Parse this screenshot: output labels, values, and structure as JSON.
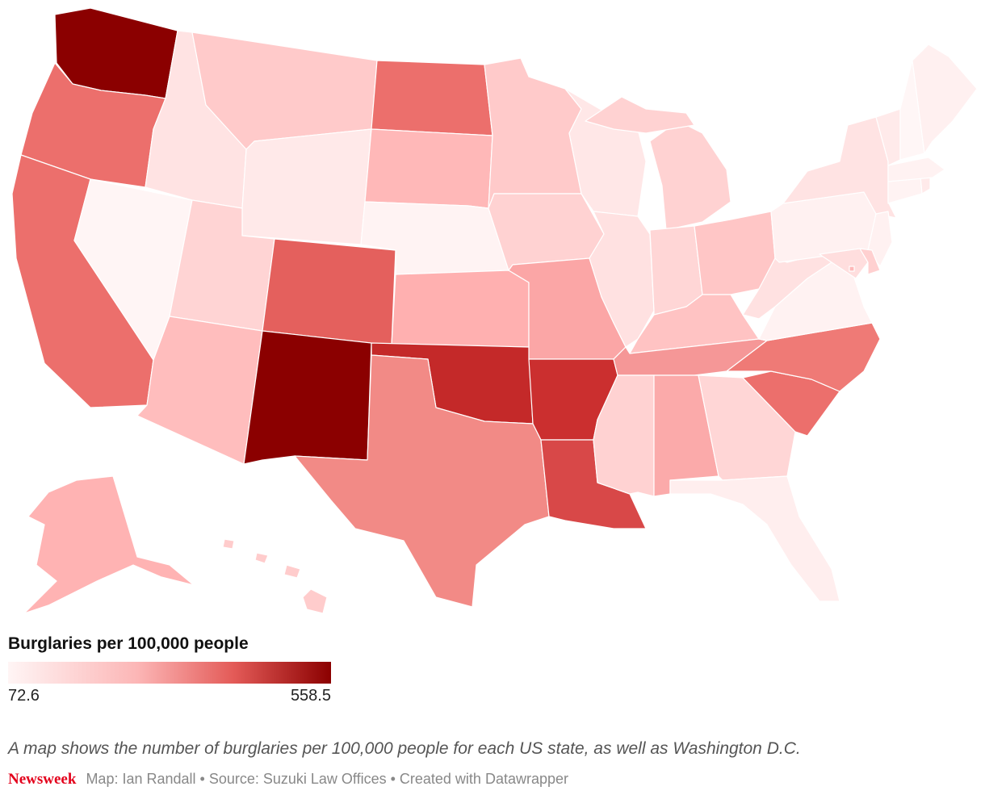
{
  "legend": {
    "title": "Burglaries per 100,000 people",
    "min_label": "72.6",
    "max_label": "558.5",
    "min_value": 72.6,
    "max_value": 558.5,
    "color_low": "#fff5f5",
    "color_high": "#8b0000"
  },
  "description": "A map shows the number of burglaries per 100,000 people for each US state, as well as Washington D.C.",
  "footer": {
    "brand": "Newsweek",
    "credits": "Map: Ian Randall • Source: Suzuki Law Offices • Created with Datawrapper"
  },
  "states": [
    {
      "code": "WA",
      "name": "Washington",
      "color": "#8b0000"
    },
    {
      "code": "OR",
      "name": "Oregon",
      "color": "#ec6f6c"
    },
    {
      "code": "CA",
      "name": "California",
      "color": "#ec6f6c"
    },
    {
      "code": "NV",
      "name": "Nevada",
      "color": "#fff5f5"
    },
    {
      "code": "ID",
      "name": "Idaho",
      "color": "#ffe3e3"
    },
    {
      "code": "MT",
      "name": "Montana",
      "color": "#ffcaca"
    },
    {
      "code": "WY",
      "name": "Wyoming",
      "color": "#ffe9e9"
    },
    {
      "code": "UT",
      "name": "Utah",
      "color": "#ffd4d4"
    },
    {
      "code": "AZ",
      "name": "Arizona",
      "color": "#ffbdbd"
    },
    {
      "code": "CO",
      "name": "Colorado",
      "color": "#e4605d"
    },
    {
      "code": "NM",
      "name": "New Mexico",
      "color": "#8b0000"
    },
    {
      "code": "ND",
      "name": "North Dakota",
      "color": "#ec6f6c"
    },
    {
      "code": "SD",
      "name": "South Dakota",
      "color": "#ffb8b8"
    },
    {
      "code": "NE",
      "name": "Nebraska",
      "color": "#fff3f3"
    },
    {
      "code": "KS",
      "name": "Kansas",
      "color": "#ffb0b0"
    },
    {
      "code": "OK",
      "name": "Oklahoma",
      "color": "#c42929"
    },
    {
      "code": "TX",
      "name": "Texas",
      "color": "#f28a86"
    },
    {
      "code": "MN",
      "name": "Minnesota",
      "color": "#ffcaca"
    },
    {
      "code": "IA",
      "name": "Iowa",
      "color": "#ffd2d2"
    },
    {
      "code": "MO",
      "name": "Missouri",
      "color": "#fba6a6"
    },
    {
      "code": "AR",
      "name": "Arkansas",
      "color": "#cb2f2f"
    },
    {
      "code": "LA",
      "name": "Louisiana",
      "color": "#d84848"
    },
    {
      "code": "WI",
      "name": "Wisconsin",
      "color": "#ffe7e7"
    },
    {
      "code": "IL",
      "name": "Illinois",
      "color": "#ffe1e1"
    },
    {
      "code": "MI",
      "name": "Michigan",
      "color": "#ffd2d2"
    },
    {
      "code": "IN",
      "name": "Indiana",
      "color": "#ffd6d6"
    },
    {
      "code": "OH",
      "name": "Ohio",
      "color": "#ffc6c6"
    },
    {
      "code": "KY",
      "name": "Kentucky",
      "color": "#ffc3c3"
    },
    {
      "code": "TN",
      "name": "Tennessee",
      "color": "#f59797"
    },
    {
      "code": "MS",
      "name": "Mississippi",
      "color": "#ffd2d2"
    },
    {
      "code": "AL",
      "name": "Alabama",
      "color": "#fbaaaa"
    },
    {
      "code": "GA",
      "name": "Georgia",
      "color": "#ffd6d6"
    },
    {
      "code": "FL",
      "name": "Florida",
      "color": "#ffeeee"
    },
    {
      "code": "SC",
      "name": "South Carolina",
      "color": "#ec6f6c"
    },
    {
      "code": "NC",
      "name": "North Carolina",
      "color": "#ef7a76"
    },
    {
      "code": "VA",
      "name": "Virginia",
      "color": "#fff2f2"
    },
    {
      "code": "WV",
      "name": "West Virginia",
      "color": "#ffe1e1"
    },
    {
      "code": "PA",
      "name": "Pennsylvania",
      "color": "#fff1f1"
    },
    {
      "code": "NY",
      "name": "New York",
      "color": "#ffe3e3"
    },
    {
      "code": "MD",
      "name": "Maryland",
      "color": "#ffdede"
    },
    {
      "code": "DE",
      "name": "Delaware",
      "color": "#ffd0d0"
    },
    {
      "code": "NJ",
      "name": "New Jersey",
      "color": "#fff1f1"
    },
    {
      "code": "CT",
      "name": "Connecticut",
      "color": "#fff3f3"
    },
    {
      "code": "RI",
      "name": "Rhode Island",
      "color": "#ffeaea"
    },
    {
      "code": "MA",
      "name": "Massachusetts",
      "color": "#fff2f2"
    },
    {
      "code": "VT",
      "name": "Vermont",
      "color": "#ffeaea"
    },
    {
      "code": "NH",
      "name": "New Hampshire",
      "color": "#fff6f6"
    },
    {
      "code": "ME",
      "name": "Maine",
      "color": "#fff0f0"
    },
    {
      "code": "DC",
      "name": "Washington D.C.",
      "color": "#ffb8b8"
    },
    {
      "code": "AK",
      "name": "Alaska",
      "color": "#ffb3b3"
    },
    {
      "code": "HI",
      "name": "Hawaii",
      "color": "#ffcccc"
    }
  ]
}
